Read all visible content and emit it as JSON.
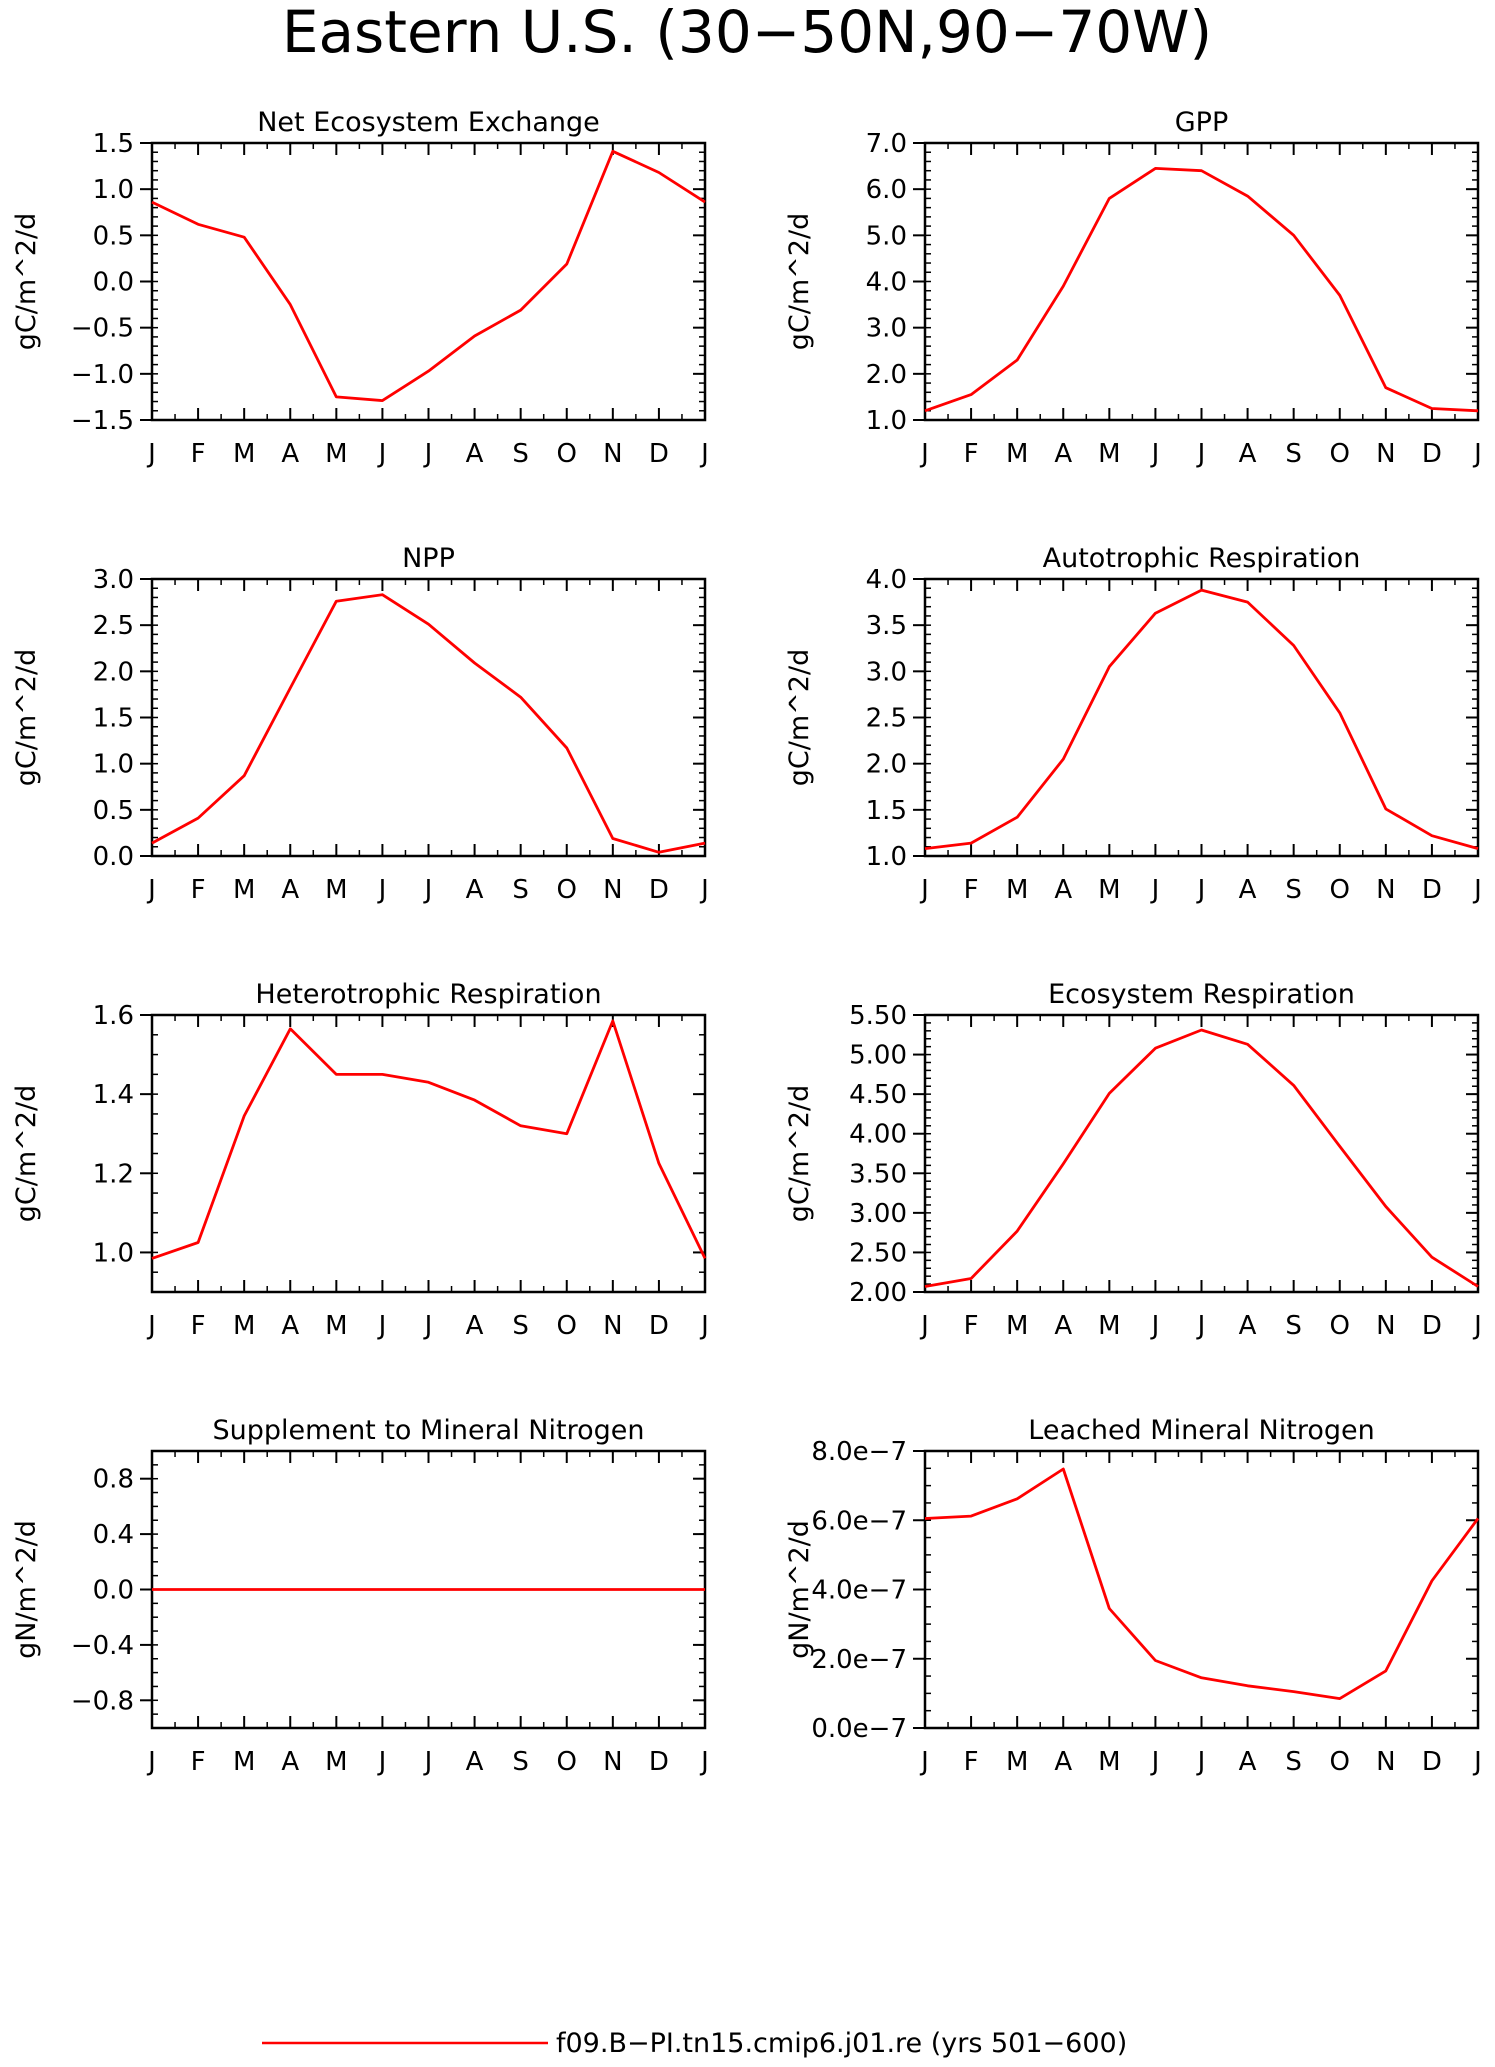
{
  "figure": {
    "title": "Eastern U.S. (30−50N,90−70W)",
    "legend": {
      "label": "f09.B−PI.tn15.cmip6.j01.re (yrs 501−600)",
      "color": "#ff0000"
    }
  },
  "chart_data": [
    {
      "type": "line",
      "title": "Net Ecosystem Exchange",
      "ylabel": "gC/m^2/d",
      "categories": [
        "J",
        "F",
        "M",
        "A",
        "M",
        "J",
        "J",
        "A",
        "S",
        "O",
        "N",
        "D",
        "J"
      ],
      "series": [
        {
          "values": [
            0.86,
            0.62,
            0.48,
            -0.25,
            -1.25,
            -1.29,
            -0.97,
            -0.59,
            -0.31,
            0.19,
            1.41,
            1.18,
            0.86
          ],
          "color": "#ff0000"
        }
      ],
      "ylim": [
        -1.5,
        1.5
      ],
      "yticks": [
        -1.5,
        -1.0,
        -0.5,
        0.0,
        0.5,
        1.0,
        1.5
      ],
      "ytick_labels": [
        "−1.5",
        "−1.0",
        "−0.5",
        "0.0",
        "0.5",
        "1.0",
        "1.5"
      ],
      "yminor": 0.1
    },
    {
      "type": "line",
      "title": "GPP",
      "ylabel": "gC/m^2/d",
      "categories": [
        "J",
        "F",
        "M",
        "A",
        "M",
        "J",
        "J",
        "A",
        "S",
        "O",
        "N",
        "D",
        "J"
      ],
      "series": [
        {
          "values": [
            1.2,
            1.55,
            2.3,
            3.9,
            5.8,
            6.45,
            6.4,
            5.85,
            5.0,
            3.7,
            1.7,
            1.25,
            1.2
          ],
          "color": "#ff0000"
        }
      ],
      "ylim": [
        1.0,
        7.0
      ],
      "yticks": [
        1.0,
        2.0,
        3.0,
        4.0,
        5.0,
        6.0,
        7.0
      ],
      "ytick_labels": [
        "1.0",
        "2.0",
        "3.0",
        "4.0",
        "5.0",
        "6.0",
        "7.0"
      ],
      "yminor": 0.2
    },
    {
      "type": "line",
      "title": "NPP",
      "ylabel": "gC/m^2/d",
      "categories": [
        "J",
        "F",
        "M",
        "A",
        "M",
        "J",
        "J",
        "A",
        "S",
        "O",
        "N",
        "D",
        "J"
      ],
      "series": [
        {
          "values": [
            0.14,
            0.41,
            0.87,
            1.82,
            2.76,
            2.83,
            2.51,
            2.09,
            1.72,
            1.17,
            0.19,
            0.04,
            0.14
          ],
          "color": "#ff0000"
        }
      ],
      "ylim": [
        0.0,
        3.0
      ],
      "yticks": [
        0.0,
        0.5,
        1.0,
        1.5,
        2.0,
        2.5,
        3.0
      ],
      "ytick_labels": [
        "0.0",
        "0.5",
        "1.0",
        "1.5",
        "2.0",
        "2.5",
        "3.0"
      ],
      "yminor": 0.1
    },
    {
      "type": "line",
      "title": "Autotrophic Respiration",
      "ylabel": "gC/m^2/d",
      "categories": [
        "J",
        "F",
        "M",
        "A",
        "M",
        "J",
        "J",
        "A",
        "S",
        "O",
        "N",
        "D",
        "J"
      ],
      "series": [
        {
          "values": [
            1.08,
            1.14,
            1.42,
            2.05,
            3.05,
            3.63,
            3.88,
            3.75,
            3.28,
            2.55,
            1.51,
            1.22,
            1.08
          ],
          "color": "#ff0000"
        }
      ],
      "ylim": [
        1.0,
        4.0
      ],
      "yticks": [
        1.0,
        1.5,
        2.0,
        2.5,
        3.0,
        3.5,
        4.0
      ],
      "ytick_labels": [
        "1.0",
        "1.5",
        "2.0",
        "2.5",
        "3.0",
        "3.5",
        "4.0"
      ],
      "yminor": 0.1
    },
    {
      "type": "line",
      "title": "Heterotrophic Respiration",
      "ylabel": "gC/m^2/d",
      "categories": [
        "J",
        "F",
        "M",
        "A",
        "M",
        "J",
        "J",
        "A",
        "S",
        "O",
        "N",
        "D",
        "J"
      ],
      "series": [
        {
          "values": [
            0.985,
            1.025,
            1.345,
            1.565,
            1.45,
            1.45,
            1.43,
            1.385,
            1.32,
            1.3,
            1.585,
            1.225,
            0.985
          ],
          "color": "#ff0000"
        }
      ],
      "ylim": [
        0.9,
        1.6
      ],
      "yticks": [
        1.0,
        1.2,
        1.4,
        1.6
      ],
      "ytick_labels": [
        "1.0",
        "1.2",
        "1.4",
        "1.6"
      ],
      "yminor": 0.05
    },
    {
      "type": "line",
      "title": "Ecosystem Respiration",
      "ylabel": "gC/m^2/d",
      "categories": [
        "J",
        "F",
        "M",
        "A",
        "M",
        "J",
        "J",
        "A",
        "S",
        "O",
        "N",
        "D",
        "J"
      ],
      "series": [
        {
          "values": [
            2.07,
            2.17,
            2.77,
            3.62,
            4.51,
            5.08,
            5.31,
            5.13,
            4.61,
            3.84,
            3.08,
            2.44,
            2.07
          ],
          "color": "#ff0000"
        }
      ],
      "ylim": [
        2.0,
        5.5
      ],
      "yticks": [
        2.0,
        2.5,
        3.0,
        3.5,
        4.0,
        4.5,
        5.0,
        5.5
      ],
      "ytick_labels": [
        "2.00",
        "2.50",
        "3.00",
        "3.50",
        "4.00",
        "4.50",
        "5.00",
        "5.50"
      ],
      "yminor": 0.1
    },
    {
      "type": "line",
      "title": "Supplement to Mineral Nitrogen",
      "ylabel": "gN/m^2/d",
      "categories": [
        "J",
        "F",
        "M",
        "A",
        "M",
        "J",
        "J",
        "A",
        "S",
        "O",
        "N",
        "D",
        "J"
      ],
      "series": [
        {
          "values": [
            0,
            0,
            0,
            0,
            0,
            0,
            0,
            0,
            0,
            0,
            0,
            0,
            0
          ],
          "color": "#ff0000"
        }
      ],
      "ylim": [
        -1.0,
        1.0
      ],
      "yticks": [
        -0.8,
        -0.4,
        0.0,
        0.4,
        0.8
      ],
      "ytick_labels": [
        "−0.8",
        "−0.4",
        "0.0",
        "0.4",
        "0.8"
      ],
      "yminor": 0.1
    },
    {
      "type": "line",
      "title": "Leached Mineral Nitrogen",
      "ylabel": "gN/m^2/d",
      "categories": [
        "J",
        "F",
        "M",
        "A",
        "M",
        "J",
        "J",
        "A",
        "S",
        "O",
        "N",
        "D",
        "J"
      ],
      "series": [
        {
          "values": [
            6.05e-07,
            6.12e-07,
            6.62e-07,
            7.48e-07,
            3.45e-07,
            1.95e-07,
            1.45e-07,
            1.22e-07,
            1.05e-07,
            8.5e-08,
            1.65e-07,
            4.25e-07,
            6.05e-07
          ],
          "color": "#ff0000"
        }
      ],
      "ylim": [
        0.0,
        8e-07
      ],
      "yticks": [
        0.0,
        2e-07,
        4e-07,
        6e-07,
        8e-07
      ],
      "ytick_labels": [
        "0.0e−7",
        "2.0e−7",
        "4.0e−7",
        "6.0e−7",
        "8.0e−7"
      ],
      "yminor": 5e-08
    }
  ]
}
